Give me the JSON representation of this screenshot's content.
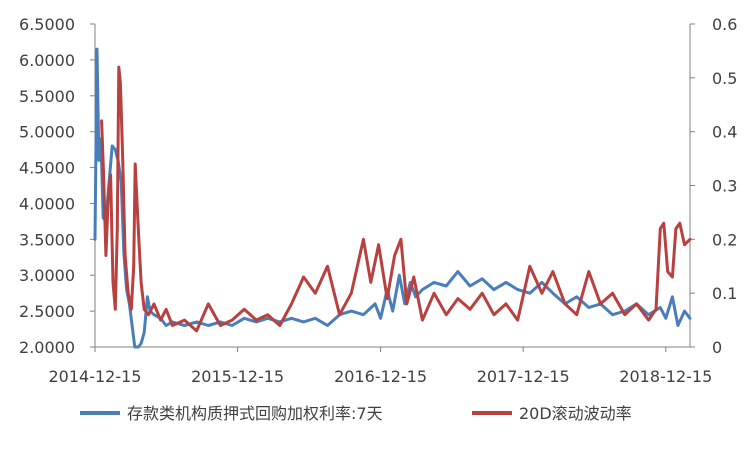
{
  "chart_data": {
    "type": "line",
    "title": "",
    "xlabel": "",
    "ylabel": "",
    "x_ticks": [
      "2014-12-15",
      "2015-12-15",
      "2016-12-15",
      "2017-12-15",
      "2018-12-15"
    ],
    "x_range": [
      "2014-12-15",
      "2019-02-15"
    ],
    "y_left": {
      "range": [
        2.0,
        6.5
      ],
      "ticks": [
        "2.0000",
        "2.5000",
        "3.0000",
        "3.5000",
        "4.0000",
        "4.5000",
        "5.0000",
        "5.5000",
        "6.0000",
        "6.5000"
      ]
    },
    "y_right": {
      "range": [
        0,
        0.6
      ],
      "ticks": [
        "0",
        "0.1",
        "0.2",
        "0.3",
        "0.4",
        "0.5",
        "0.6"
      ]
    },
    "grid": false,
    "legend_position": "bottom",
    "series": [
      {
        "name": "存款类机构质押式回购加权利率:7天",
        "axis": "left",
        "color": "#4a7eba",
        "points": [
          [
            "2014-12-15",
            3.5
          ],
          [
            "2014-12-20",
            6.15
          ],
          [
            "2014-12-25",
            4.6
          ],
          [
            "2014-12-30",
            4.9
          ],
          [
            "2015-01-05",
            3.8
          ],
          [
            "2015-01-12",
            3.75
          ],
          [
            "2015-01-20",
            4.3
          ],
          [
            "2015-01-28",
            4.8
          ],
          [
            "2015-02-05",
            4.75
          ],
          [
            "2015-02-12",
            4.6
          ],
          [
            "2015-02-20",
            4.3
          ],
          [
            "2015-02-27",
            3.3
          ],
          [
            "2015-03-06",
            2.8
          ],
          [
            "2015-03-13",
            2.6
          ],
          [
            "2015-03-20",
            2.3
          ],
          [
            "2015-03-27",
            2.0
          ],
          [
            "2015-04-05",
            1.9
          ],
          [
            "2015-04-12",
            2.05
          ],
          [
            "2015-04-20",
            2.2
          ],
          [
            "2015-04-28",
            2.7
          ],
          [
            "2015-05-05",
            2.5
          ],
          [
            "2015-05-15",
            2.45
          ],
          [
            "2015-06-01",
            2.4
          ],
          [
            "2015-06-15",
            2.3
          ],
          [
            "2015-07-01",
            2.35
          ],
          [
            "2015-08-01",
            2.3
          ],
          [
            "2015-09-01",
            2.35
          ],
          [
            "2015-10-01",
            2.3
          ],
          [
            "2015-11-01",
            2.35
          ],
          [
            "2015-12-01",
            2.3
          ],
          [
            "2016-01-01",
            2.4
          ],
          [
            "2016-02-01",
            2.35
          ],
          [
            "2016-03-01",
            2.4
          ],
          [
            "2016-04-01",
            2.35
          ],
          [
            "2016-05-01",
            2.4
          ],
          [
            "2016-06-01",
            2.35
          ],
          [
            "2016-07-01",
            2.4
          ],
          [
            "2016-08-01",
            2.3
          ],
          [
            "2016-09-01",
            2.45
          ],
          [
            "2016-10-01",
            2.5
          ],
          [
            "2016-11-01",
            2.45
          ],
          [
            "2016-12-01",
            2.6
          ],
          [
            "2016-12-15",
            2.4
          ],
          [
            "2017-01-01",
            2.8
          ],
          [
            "2017-01-15",
            2.5
          ],
          [
            "2017-02-01",
            3.0
          ],
          [
            "2017-02-15",
            2.6
          ],
          [
            "2017-03-01",
            2.9
          ],
          [
            "2017-03-15",
            2.7
          ],
          [
            "2017-04-01",
            2.8
          ],
          [
            "2017-05-01",
            2.9
          ],
          [
            "2017-06-01",
            2.85
          ],
          [
            "2017-07-01",
            3.05
          ],
          [
            "2017-08-01",
            2.85
          ],
          [
            "2017-09-01",
            2.95
          ],
          [
            "2017-10-01",
            2.8
          ],
          [
            "2017-11-01",
            2.9
          ],
          [
            "2017-12-01",
            2.8
          ],
          [
            "2018-01-01",
            2.75
          ],
          [
            "2018-02-01",
            2.9
          ],
          [
            "2018-03-01",
            2.75
          ],
          [
            "2018-04-01",
            2.6
          ],
          [
            "2018-05-01",
            2.7
          ],
          [
            "2018-06-01",
            2.55
          ],
          [
            "2018-07-01",
            2.6
          ],
          [
            "2018-08-01",
            2.45
          ],
          [
            "2018-09-01",
            2.5
          ],
          [
            "2018-10-01",
            2.6
          ],
          [
            "2018-11-01",
            2.45
          ],
          [
            "2018-12-01",
            2.55
          ],
          [
            "2018-12-15",
            2.4
          ],
          [
            "2019-01-01",
            2.7
          ],
          [
            "2019-01-15",
            2.3
          ],
          [
            "2019-02-01",
            2.5
          ],
          [
            "2019-02-15",
            2.4
          ]
        ]
      },
      {
        "name": "20D滚动波动率",
        "axis": "right",
        "color": "#b8413f",
        "points": [
          [
            "2015-01-01",
            0.42
          ],
          [
            "2015-01-06",
            0.32
          ],
          [
            "2015-01-12",
            0.17
          ],
          [
            "2015-01-18",
            0.28
          ],
          [
            "2015-01-24",
            0.32
          ],
          [
            "2015-01-30",
            0.12
          ],
          [
            "2015-02-05",
            0.07
          ],
          [
            "2015-02-10",
            0.22
          ],
          [
            "2015-02-14",
            0.52
          ],
          [
            "2015-02-18",
            0.49
          ],
          [
            "2015-02-24",
            0.35
          ],
          [
            "2015-03-02",
            0.17
          ],
          [
            "2015-03-10",
            0.1
          ],
          [
            "2015-03-18",
            0.07
          ],
          [
            "2015-03-24",
            0.15
          ],
          [
            "2015-03-28",
            0.34
          ],
          [
            "2015-04-04",
            0.23
          ],
          [
            "2015-04-12",
            0.12
          ],
          [
            "2015-04-20",
            0.07
          ],
          [
            "2015-05-01",
            0.06
          ],
          [
            "2015-05-15",
            0.08
          ],
          [
            "2015-06-01",
            0.05
          ],
          [
            "2015-06-15",
            0.07
          ],
          [
            "2015-07-01",
            0.04
          ],
          [
            "2015-08-01",
            0.05
          ],
          [
            "2015-09-01",
            0.03
          ],
          [
            "2015-10-01",
            0.08
          ],
          [
            "2015-11-01",
            0.04
          ],
          [
            "2015-12-01",
            0.05
          ],
          [
            "2016-01-01",
            0.07
          ],
          [
            "2016-02-01",
            0.05
          ],
          [
            "2016-03-01",
            0.06
          ],
          [
            "2016-04-01",
            0.04
          ],
          [
            "2016-05-01",
            0.08
          ],
          [
            "2016-06-01",
            0.13
          ],
          [
            "2016-07-01",
            0.1
          ],
          [
            "2016-08-01",
            0.15
          ],
          [
            "2016-09-01",
            0.06
          ],
          [
            "2016-10-01",
            0.1
          ],
          [
            "2016-11-01",
            0.2
          ],
          [
            "2016-11-20",
            0.12
          ],
          [
            "2016-12-10",
            0.19
          ],
          [
            "2017-01-01",
            0.09
          ],
          [
            "2017-01-20",
            0.17
          ],
          [
            "2017-02-05",
            0.2
          ],
          [
            "2017-02-20",
            0.08
          ],
          [
            "2017-03-10",
            0.13
          ],
          [
            "2017-04-01",
            0.05
          ],
          [
            "2017-05-01",
            0.1
          ],
          [
            "2017-06-01",
            0.06
          ],
          [
            "2017-07-01",
            0.09
          ],
          [
            "2017-08-01",
            0.07
          ],
          [
            "2017-09-01",
            0.1
          ],
          [
            "2017-10-01",
            0.06
          ],
          [
            "2017-11-01",
            0.08
          ],
          [
            "2017-12-01",
            0.05
          ],
          [
            "2018-01-01",
            0.15
          ],
          [
            "2018-02-01",
            0.1
          ],
          [
            "2018-03-01",
            0.14
          ],
          [
            "2018-04-01",
            0.08
          ],
          [
            "2018-05-01",
            0.06
          ],
          [
            "2018-06-01",
            0.14
          ],
          [
            "2018-07-01",
            0.08
          ],
          [
            "2018-08-01",
            0.1
          ],
          [
            "2018-09-01",
            0.06
          ],
          [
            "2018-10-01",
            0.08
          ],
          [
            "2018-11-01",
            0.05
          ],
          [
            "2018-11-20",
            0.07
          ],
          [
            "2018-12-01",
            0.22
          ],
          [
            "2018-12-10",
            0.23
          ],
          [
            "2018-12-20",
            0.14
          ],
          [
            "2019-01-01",
            0.13
          ],
          [
            "2019-01-10",
            0.22
          ],
          [
            "2019-01-20",
            0.23
          ],
          [
            "2019-02-01",
            0.19
          ],
          [
            "2019-02-15",
            0.2
          ]
        ]
      }
    ]
  }
}
